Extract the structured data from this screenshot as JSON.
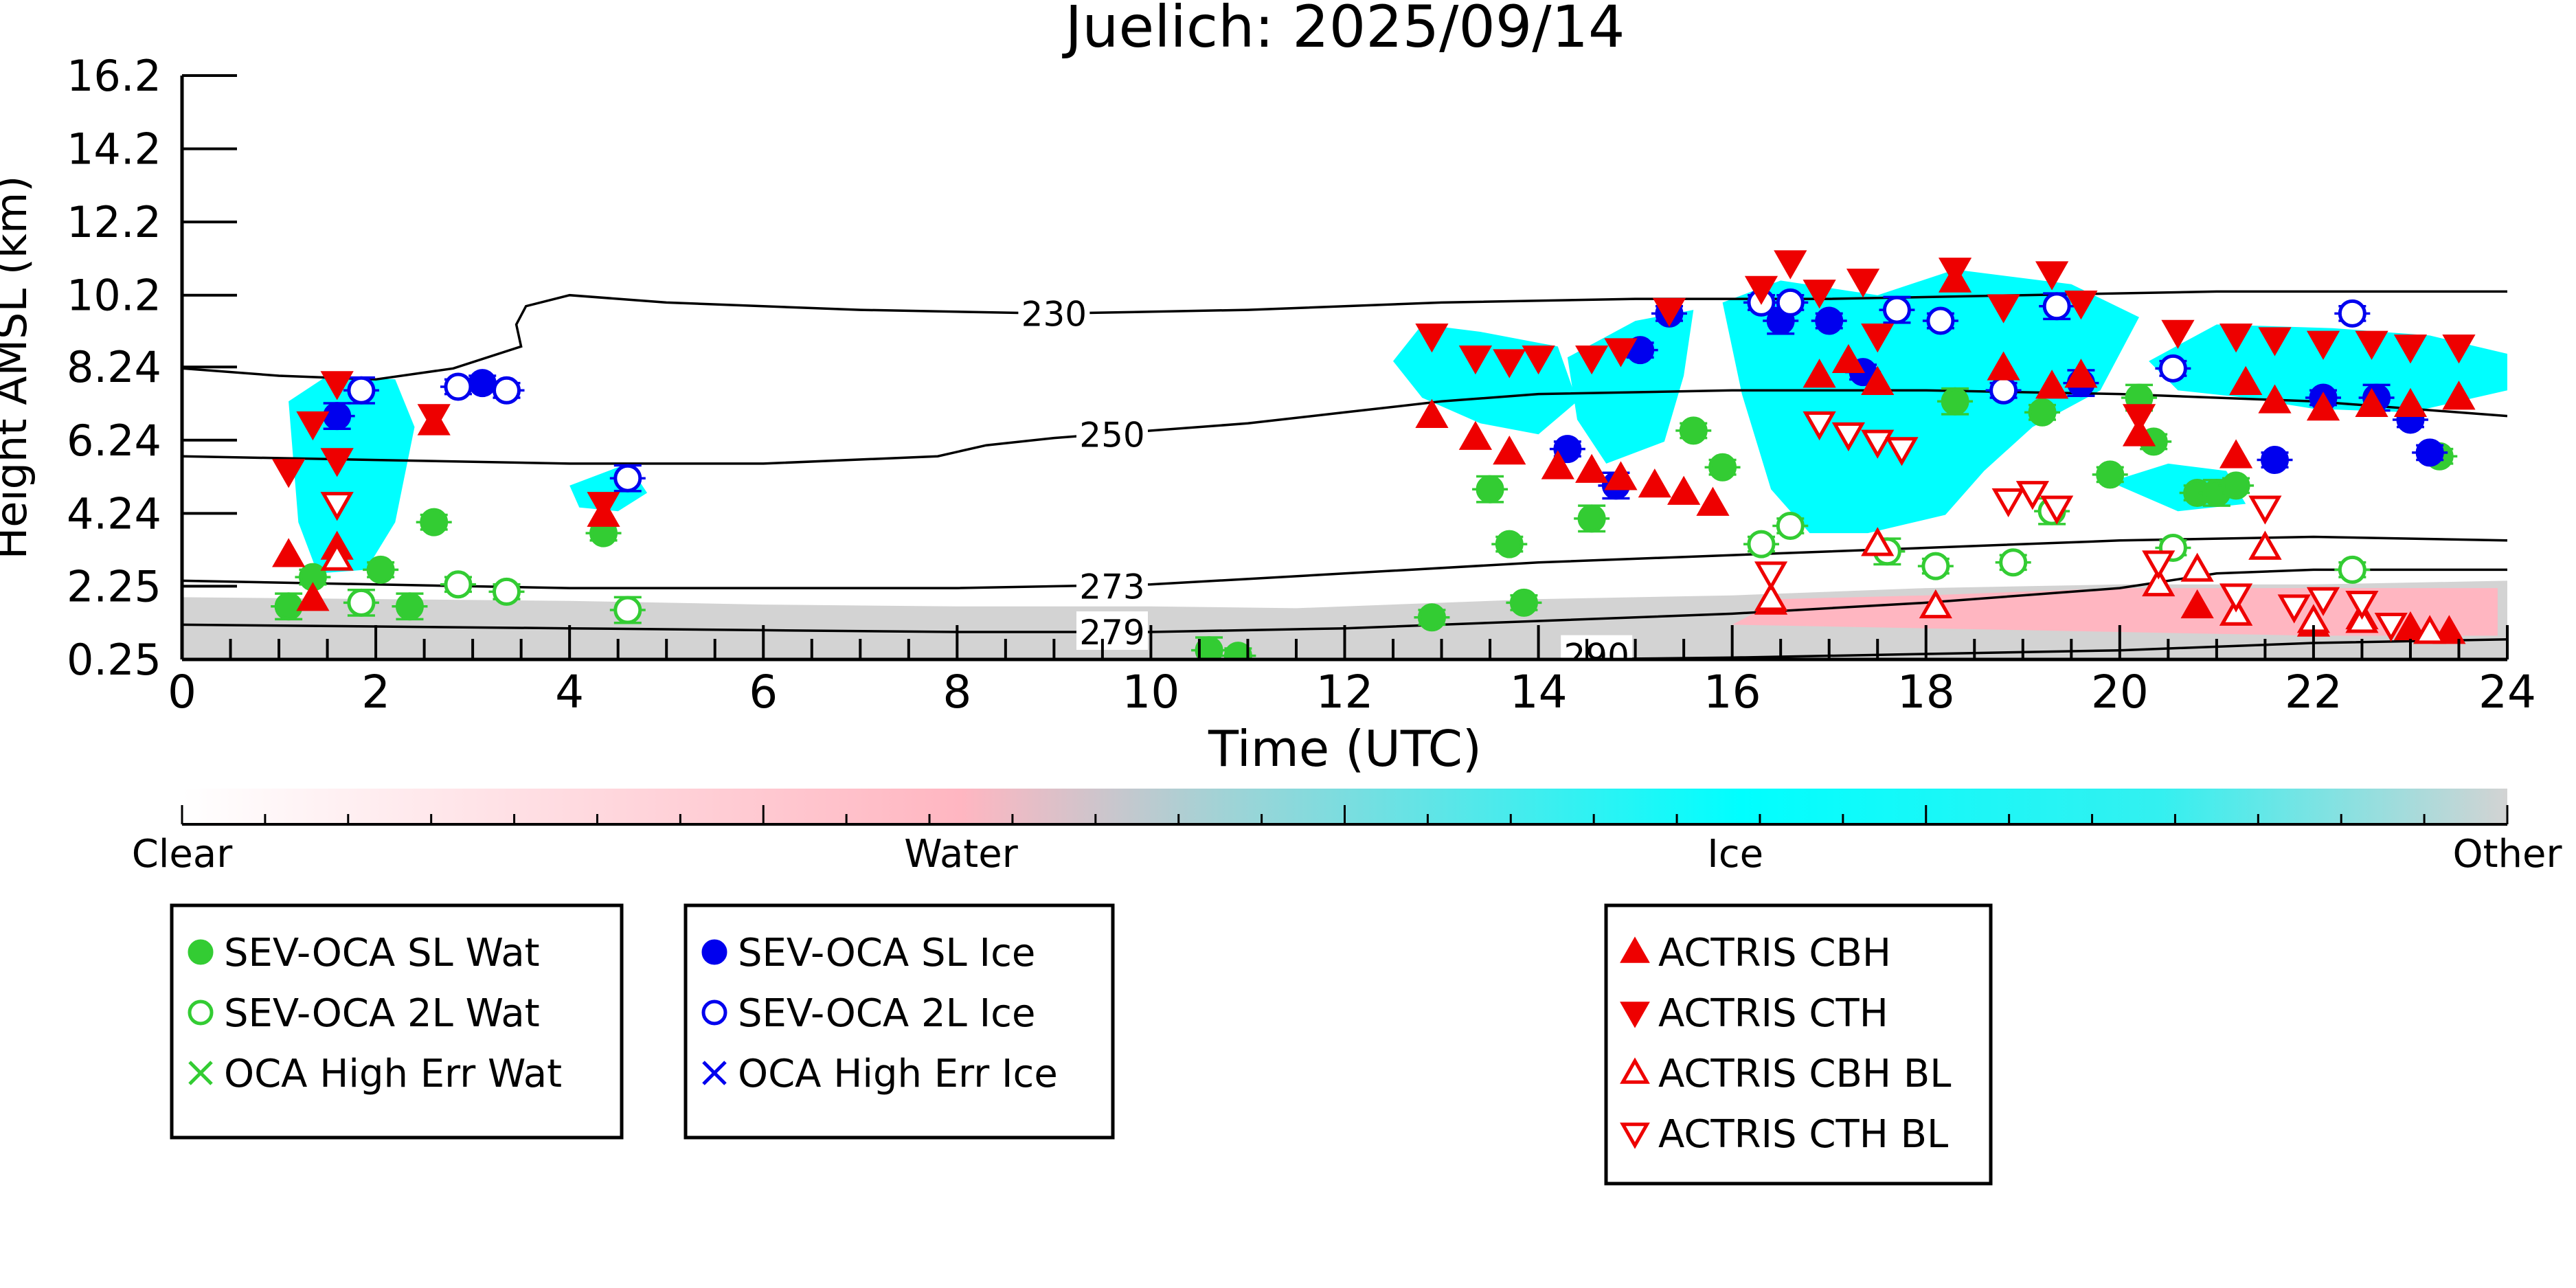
{
  "chart_data": {
    "type": "scatter",
    "title": "Juelich: 2025/09/14",
    "xlabel": "Time (UTC)",
    "ylabel": "Height AMSL (km)",
    "xlim": [
      0,
      24
    ],
    "ylim": [
      0.25,
      16.2
    ],
    "x_ticks": [
      "0",
      "2",
      "4",
      "6",
      "8",
      "10",
      "12",
      "14",
      "16",
      "18",
      "20",
      "22",
      "24"
    ],
    "y_ticks": [
      "0.25",
      "2.25",
      "4.24",
      "6.24",
      "8.24",
      "10.2",
      "12.2",
      "14.2",
      "16.2"
    ],
    "colorbar": {
      "labels": [
        "Clear",
        "Water",
        "Ice",
        "Other"
      ],
      "colors": [
        "#ffffff",
        "#ffb6c1",
        "#00ffff",
        "#d3d3d3"
      ]
    },
    "contours": [
      {
        "label": "230",
        "x": [
          0,
          1,
          2,
          2.8,
          3.5,
          3.45,
          3.55,
          4,
          5,
          7,
          9,
          11,
          13,
          15,
          17,
          19,
          21,
          24
        ],
        "y": [
          8.2,
          8.0,
          7.9,
          8.2,
          8.8,
          9.4,
          9.9,
          10.2,
          10.0,
          9.8,
          9.7,
          9.8,
          10.0,
          10.1,
          10.1,
          10.2,
          10.3,
          10.3
        ]
      },
      {
        "label": "250",
        "x": [
          0,
          2,
          4,
          6,
          7.8,
          8.3,
          9,
          10,
          11,
          12,
          13,
          14,
          16,
          18,
          20,
          22,
          24
        ],
        "y": [
          5.8,
          5.7,
          5.6,
          5.6,
          5.8,
          6.1,
          6.3,
          6.5,
          6.7,
          7.0,
          7.3,
          7.5,
          7.6,
          7.6,
          7.5,
          7.3,
          6.9
        ]
      },
      {
        "label": "273",
        "x": [
          0,
          2,
          4,
          6,
          8,
          10,
          12,
          14,
          16,
          18,
          20,
          22,
          24
        ],
        "y": [
          2.4,
          2.3,
          2.2,
          2.2,
          2.2,
          2.3,
          2.6,
          2.9,
          3.1,
          3.3,
          3.5,
          3.6,
          3.5
        ]
      },
      {
        "label": "279",
        "x": [
          0,
          2,
          4,
          6,
          8,
          10,
          12,
          14,
          16,
          18,
          20,
          21,
          22,
          24
        ],
        "y": [
          1.2,
          1.15,
          1.1,
          1.05,
          1.0,
          1.0,
          1.1,
          1.3,
          1.5,
          1.8,
          2.2,
          2.6,
          2.7,
          2.7
        ]
      },
      {
        "label": "290",
        "x": [
          14.2,
          16,
          18,
          20,
          22,
          24
        ],
        "y": [
          0.25,
          0.3,
          0.4,
          0.5,
          0.7,
          0.8
        ]
      }
    ],
    "series": [
      {
        "name": "SEV-OCA SL Wat",
        "points": [
          [
            1.1,
            1.7
          ],
          [
            1.35,
            2.5
          ],
          [
            2.05,
            2.7
          ],
          [
            2.35,
            1.7
          ],
          [
            2.6,
            4.0
          ],
          [
            4.35,
            3.7
          ],
          [
            10.6,
            0.5
          ],
          [
            10.9,
            0.35
          ],
          [
            12.9,
            1.4
          ],
          [
            13.5,
            4.9
          ],
          [
            13.7,
            3.4
          ],
          [
            13.85,
            1.8
          ],
          [
            14.55,
            4.1
          ],
          [
            15.6,
            6.5
          ],
          [
            15.9,
            5.5
          ],
          [
            18.3,
            7.3
          ],
          [
            19.2,
            7.0
          ],
          [
            19.9,
            5.3
          ],
          [
            20.2,
            7.4
          ],
          [
            20.35,
            6.2
          ],
          [
            20.8,
            4.8
          ],
          [
            21.0,
            4.8
          ],
          [
            21.2,
            5.0
          ],
          [
            23.3,
            5.8
          ]
        ]
      },
      {
        "name": "SEV-OCA 2L Wat",
        "points": [
          [
            1.85,
            1.8
          ],
          [
            2.85,
            2.3
          ],
          [
            3.35,
            2.1
          ],
          [
            4.6,
            1.6
          ],
          [
            16.3,
            3.4
          ],
          [
            16.6,
            3.9
          ],
          [
            17.6,
            3.2
          ],
          [
            18.1,
            2.8
          ],
          [
            18.9,
            2.9
          ],
          [
            19.3,
            4.3
          ],
          [
            20.55,
            3.3
          ],
          [
            22.4,
            2.7
          ]
        ]
      },
      {
        "name": "OCA High Err Wat",
        "points": []
      },
      {
        "name": "SEV-OCA SL Ice",
        "points": [
          [
            1.6,
            6.9
          ],
          [
            3.1,
            7.8
          ],
          [
            14.3,
            6.0
          ],
          [
            14.8,
            5.0
          ],
          [
            15.05,
            8.7
          ],
          [
            15.35,
            9.7
          ],
          [
            16.5,
            9.5
          ],
          [
            17.0,
            9.5
          ],
          [
            17.35,
            8.1
          ],
          [
            19.6,
            7.8
          ],
          [
            21.6,
            5.7
          ],
          [
            22.1,
            7.4
          ],
          [
            22.65,
            7.4
          ],
          [
            23.0,
            6.8
          ],
          [
            23.2,
            5.9
          ]
        ]
      },
      {
        "name": "SEV-OCA 2L Ice",
        "points": [
          [
            1.85,
            7.6
          ],
          [
            2.85,
            7.7
          ],
          [
            3.35,
            7.6
          ],
          [
            4.6,
            5.2
          ],
          [
            16.3,
            10.0
          ],
          [
            16.6,
            10.0
          ],
          [
            17.7,
            9.8
          ],
          [
            18.15,
            9.5
          ],
          [
            18.8,
            7.6
          ],
          [
            19.35,
            9.9
          ],
          [
            20.55,
            8.2
          ],
          [
            22.4,
            9.7
          ]
        ]
      },
      {
        "name": "OCA High Err Ice",
        "points": []
      },
      {
        "name": "ACTRIS CBH",
        "points": [
          [
            1.1,
            3.1
          ],
          [
            1.35,
            1.9
          ],
          [
            1.6,
            3.3
          ],
          [
            2.6,
            6.7
          ],
          [
            4.35,
            4.2
          ],
          [
            12.9,
            6.9
          ],
          [
            13.35,
            6.3
          ],
          [
            13.7,
            5.9
          ],
          [
            14.2,
            5.5
          ],
          [
            14.55,
            5.4
          ],
          [
            14.85,
            5.2
          ],
          [
            15.2,
            5.0
          ],
          [
            15.5,
            4.8
          ],
          [
            15.8,
            4.5
          ],
          [
            16.4,
            1.8
          ],
          [
            16.9,
            8.0
          ],
          [
            17.2,
            8.4
          ],
          [
            17.5,
            7.8
          ],
          [
            18.3,
            10.6
          ],
          [
            18.8,
            8.2
          ],
          [
            19.3,
            7.7
          ],
          [
            19.6,
            8.0
          ],
          [
            20.2,
            6.4
          ],
          [
            21.2,
            5.8
          ],
          [
            21.3,
            7.8
          ],
          [
            21.6,
            7.3
          ],
          [
            22.1,
            7.1
          ],
          [
            22.6,
            7.2
          ],
          [
            23.0,
            7.2
          ],
          [
            23.5,
            7.4
          ],
          [
            20.8,
            1.7
          ],
          [
            21.2,
            1.5
          ],
          [
            21.5,
            3.3
          ],
          [
            22.0,
            1.2
          ],
          [
            22.5,
            1.4
          ],
          [
            23.0,
            1.1
          ],
          [
            23.4,
            1.0
          ]
        ]
      },
      {
        "name": "ACTRIS CTH",
        "points": [
          [
            1.1,
            5.4
          ],
          [
            1.35,
            6.7
          ],
          [
            1.6,
            5.7
          ],
          [
            1.6,
            7.8
          ],
          [
            2.6,
            6.9
          ],
          [
            4.35,
            4.5
          ],
          [
            12.9,
            9.1
          ],
          [
            13.35,
            8.5
          ],
          [
            13.7,
            8.4
          ],
          [
            14.0,
            8.5
          ],
          [
            14.55,
            8.5
          ],
          [
            14.85,
            8.7
          ],
          [
            15.35,
            9.8
          ],
          [
            16.3,
            10.4
          ],
          [
            16.6,
            11.1
          ],
          [
            16.9,
            10.3
          ],
          [
            17.35,
            10.6
          ],
          [
            17.5,
            9.1
          ],
          [
            18.3,
            10.9
          ],
          [
            18.8,
            9.9
          ],
          [
            19.3,
            10.8
          ],
          [
            19.6,
            10.0
          ],
          [
            20.2,
            6.9
          ],
          [
            20.6,
            9.2
          ],
          [
            21.2,
            9.1
          ],
          [
            21.6,
            9.0
          ],
          [
            22.1,
            8.9
          ],
          [
            22.6,
            8.9
          ],
          [
            23.0,
            8.8
          ],
          [
            23.5,
            8.8
          ]
        ]
      },
      {
        "name": "ACTRIS CBH BL",
        "points": [
          [
            1.6,
            3.0
          ],
          [
            16.4,
            1.9
          ],
          [
            17.5,
            3.4
          ],
          [
            18.1,
            1.7
          ],
          [
            20.4,
            2.3
          ],
          [
            20.8,
            2.7
          ],
          [
            21.2,
            1.5
          ],
          [
            21.5,
            3.3
          ],
          [
            22.0,
            1.3
          ],
          [
            22.5,
            1.3
          ],
          [
            23.2,
            1.0
          ]
        ]
      },
      {
        "name": "ACTRIS CTH BL",
        "points": [
          [
            1.6,
            4.5
          ],
          [
            16.4,
            2.6
          ],
          [
            16.9,
            6.7
          ],
          [
            17.2,
            6.4
          ],
          [
            17.5,
            6.2
          ],
          [
            17.75,
            6.0
          ],
          [
            18.85,
            4.6
          ],
          [
            19.1,
            4.8
          ],
          [
            19.35,
            4.4
          ],
          [
            20.4,
            2.9
          ],
          [
            21.2,
            2.0
          ],
          [
            21.5,
            4.4
          ],
          [
            21.8,
            1.7
          ],
          [
            22.1,
            1.9
          ],
          [
            22.5,
            1.8
          ],
          [
            22.8,
            1.2
          ]
        ]
      }
    ]
  },
  "legend_boxes": [
    {
      "items": [
        {
          "label": "SEV-OCA SL Wat",
          "marker": "circle-filled",
          "color": "#33cc33"
        },
        {
          "label": "SEV-OCA 2L Wat",
          "marker": "circle-open",
          "color": "#33cc33"
        },
        {
          "label": "OCA High Err Wat",
          "marker": "x",
          "color": "#33cc33"
        }
      ]
    },
    {
      "items": [
        {
          "label": "SEV-OCA SL Ice",
          "marker": "circle-filled",
          "color": "#0000ee"
        },
        {
          "label": "SEV-OCA 2L Ice",
          "marker": "circle-open",
          "color": "#0000ee"
        },
        {
          "label": "OCA High Err Ice",
          "marker": "x",
          "color": "#0000ee"
        }
      ]
    },
    {
      "items": [
        {
          "label": "ACTRIS CBH",
          "marker": "triangle-up-filled",
          "color": "#ee0000"
        },
        {
          "label": "ACTRIS CTH",
          "marker": "triangle-down-filled",
          "color": "#ee0000"
        },
        {
          "label": "ACTRIS CBH BL",
          "marker": "triangle-up-open",
          "color": "#ee0000"
        },
        {
          "label": "ACTRIS CTH BL",
          "marker": "triangle-down-open",
          "color": "#ee0000"
        }
      ]
    }
  ],
  "colors": {
    "water_sat": "#33cc33",
    "ice_sat": "#0000ee",
    "actris": "#ee0000",
    "ice_cloud": "#00ffff",
    "water_cloud": "#ffb6c1",
    "other": "#d3d3d3"
  }
}
